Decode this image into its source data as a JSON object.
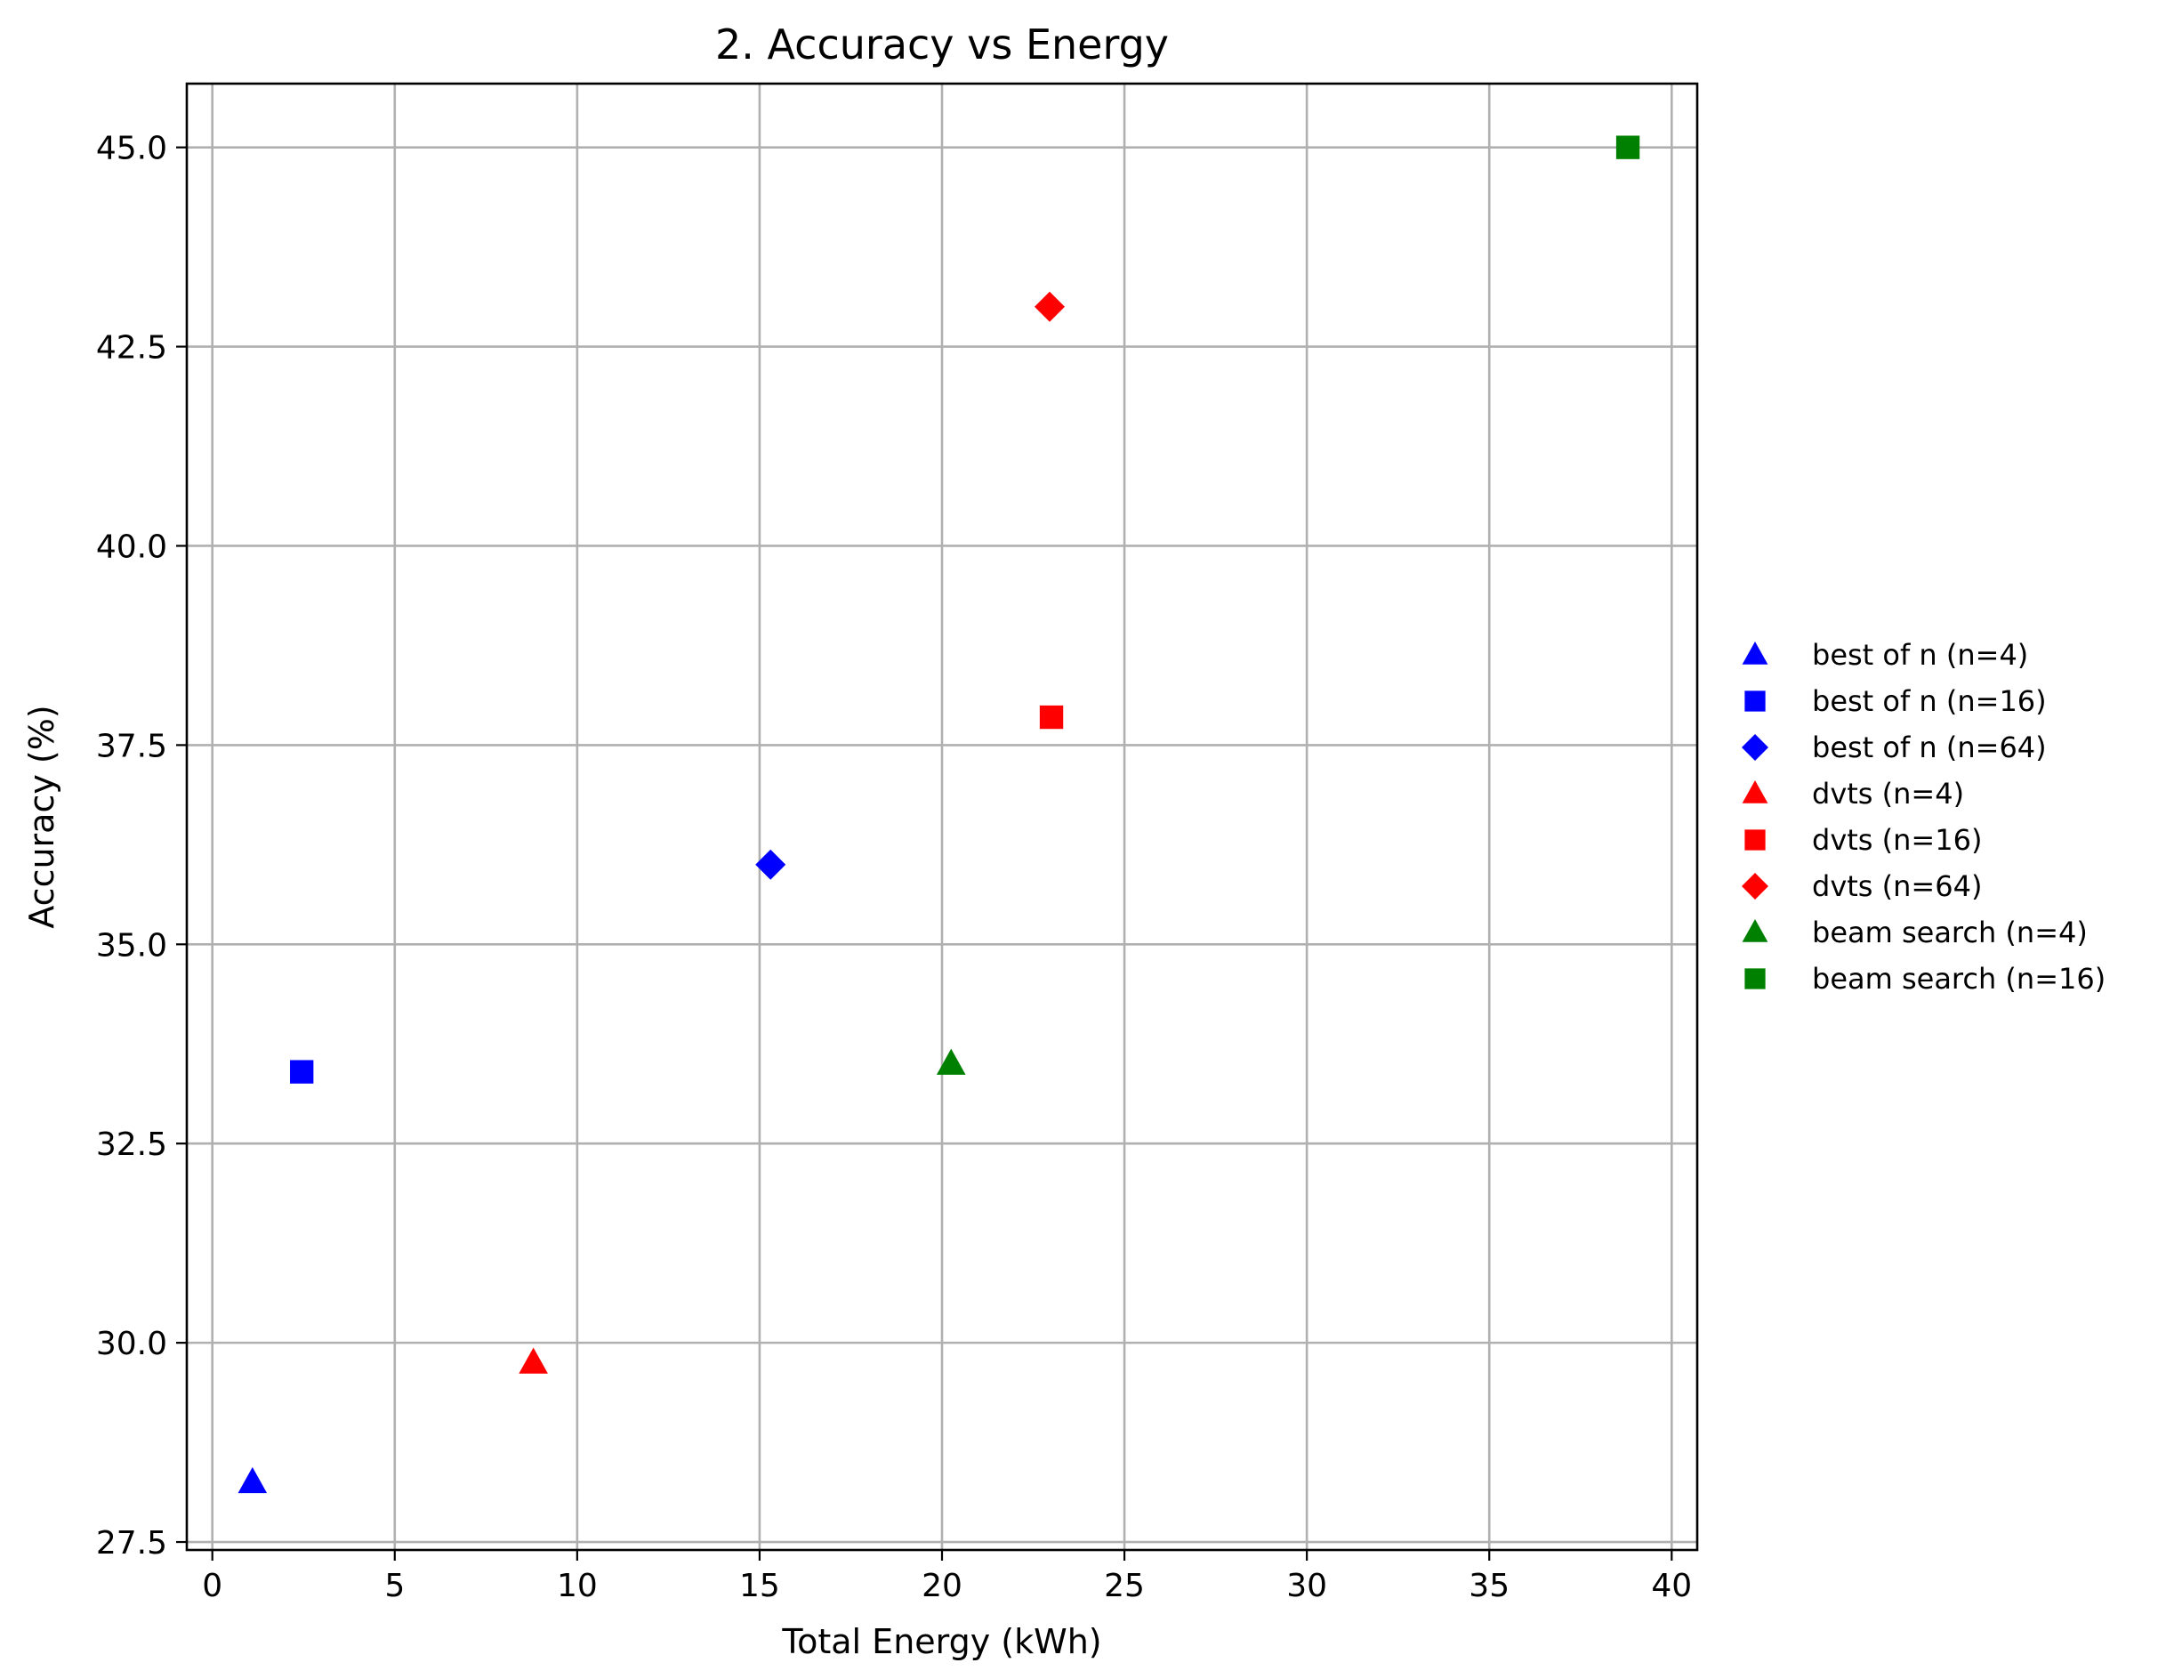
{
  "chart_data": {
    "type": "scatter",
    "title": "2. Accuracy vs Energy",
    "xlabel": "Total Energy (kWh)",
    "ylabel": "Accuracy (%)",
    "xlim": [
      -0.7,
      40.7
    ],
    "ylim": [
      27.4,
      45.8
    ],
    "xticks": [
      0,
      5,
      10,
      15,
      20,
      25,
      30,
      35,
      40
    ],
    "xtick_labels": [
      "0",
      "5",
      "10",
      "15",
      "20",
      "25",
      "30",
      "35",
      "40"
    ],
    "yticks": [
      27.5,
      30.0,
      32.5,
      35.0,
      37.5,
      40.0,
      42.5,
      45.0
    ],
    "ytick_labels": [
      "27.5",
      "30.0",
      "32.5",
      "35.0",
      "37.5",
      "40.0",
      "42.5",
      "45.0"
    ],
    "grid": true,
    "legend_position": "outside right, centered",
    "series": [
      {
        "name": "best of n (n=4)",
        "marker": "triangle",
        "color": "#0000ff",
        "points": [
          {
            "x": 1.1,
            "y": 28.25
          }
        ]
      },
      {
        "name": "best of n (n=16)",
        "marker": "square",
        "color": "#0000ff",
        "points": [
          {
            "x": 2.45,
            "y": 33.4
          }
        ]
      },
      {
        "name": "best of n (n=64)",
        "marker": "diamond",
        "color": "#0000ff",
        "points": [
          {
            "x": 15.3,
            "y": 36.0
          }
        ]
      },
      {
        "name": "dvts (n=4)",
        "marker": "triangle",
        "color": "#ff0000",
        "points": [
          {
            "x": 8.8,
            "y": 29.75
          }
        ]
      },
      {
        "name": "dvts (n=16)",
        "marker": "square",
        "color": "#ff0000",
        "points": [
          {
            "x": 23.0,
            "y": 37.85
          }
        ]
      },
      {
        "name": "dvts (n=64)",
        "marker": "diamond",
        "color": "#ff0000",
        "points": [
          {
            "x": 22.95,
            "y": 43.0
          }
        ]
      },
      {
        "name": "beam search (n=4)",
        "marker": "triangle",
        "color": "#008000",
        "points": [
          {
            "x": 20.25,
            "y": 33.5
          }
        ]
      },
      {
        "name": "beam search (n=16)",
        "marker": "square",
        "color": "#008000",
        "points": [
          {
            "x": 38.8,
            "y": 45.0
          }
        ]
      }
    ]
  }
}
